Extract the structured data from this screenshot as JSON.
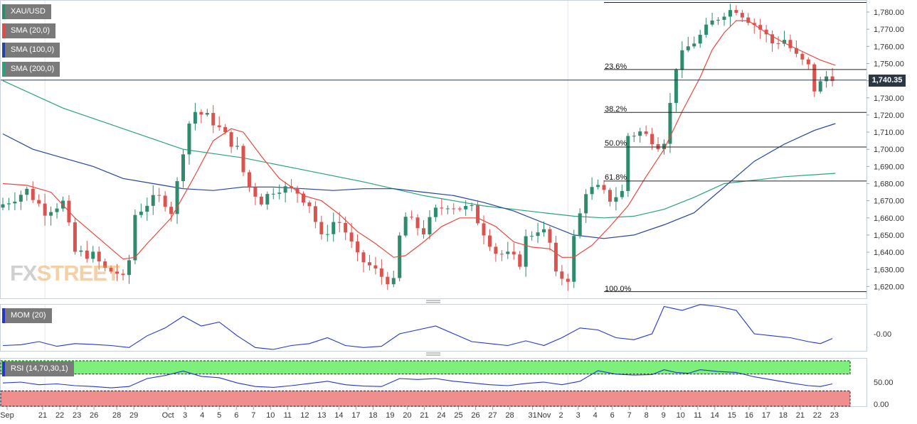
{
  "legend": {
    "symbol": "XAU/USD",
    "sma20": "SMA (20,0)",
    "sma100": "SMA (100,0)",
    "sma200": "SMA (200,0)",
    "mom": "MOM (20)",
    "rsi": "RSI (14,70,30,1)"
  },
  "colors": {
    "up": "#2e8b6e",
    "down": "#d9544f",
    "sma20": "#e84a3f",
    "sma100": "#23459c",
    "sma200": "#2aa27e",
    "indicator": "#2437c8",
    "overbought": "#7cf07a",
    "oversold": "#f08d8d"
  },
  "watermark": {
    "a": "FX",
    "b": "STREET"
  },
  "current_price": "1,740.35",
  "fib_levels": [
    {
      "label": "23.6%",
      "value": 1746.5
    },
    {
      "label": "38.2%",
      "value": 1721.5
    },
    {
      "label": "50.0%",
      "value": 1701.3
    },
    {
      "label": "61.8%",
      "value": 1681.5
    },
    {
      "label": "100.0%",
      "value": 1617.0
    }
  ],
  "fib_top": 1785.6,
  "chart_data": [
    {
      "type": "candlestick",
      "title": "",
      "symbol": "XAU/USD",
      "x_ticks": [
        "Sep",
        "21",
        "22",
        "23",
        "26",
        "28",
        "29",
        "Oct",
        "3",
        "4",
        "5",
        "6",
        "7",
        "10",
        "11",
        "12",
        "13",
        "14",
        "17",
        "18",
        "19",
        "20",
        "21",
        "24",
        "25",
        "26",
        "27",
        "28",
        "31",
        "Nov",
        "2",
        "3",
        "4",
        "6",
        "7",
        "8",
        "9",
        "10",
        "11",
        "14",
        "15",
        "16",
        "17",
        "18",
        "21",
        "22",
        "23"
      ],
      "y_ticks": [
        "1,780.00",
        "1,770.00",
        "1,760.00",
        "1,750.00",
        "1,740.00",
        "1,730.00",
        "1,720.00",
        "1,710.00",
        "1,700.00",
        "1,690.00",
        "1,680.00",
        "1,670.00",
        "1,660.00",
        "1,650.00",
        "1,640.00",
        "1,630.00",
        "1,620.00"
      ],
      "ylim": [
        1612,
        1786
      ],
      "close_path": [
        [
          0,
          1668
        ],
        [
          4,
          1676
        ],
        [
          7,
          1664
        ],
        [
          10,
          1669
        ],
        [
          12,
          1640
        ],
        [
          15,
          1638
        ],
        [
          17,
          1630
        ],
        [
          19,
          1628
        ],
        [
          20.5,
          1622
        ],
        [
          22,
          1662
        ],
        [
          24.5,
          1670
        ],
        [
          26.5,
          1672
        ],
        [
          28,
          1664
        ],
        [
          29.5,
          1688
        ],
        [
          30.5,
          1712
        ],
        [
          32,
          1722
        ],
        [
          34.5,
          1718
        ],
        [
          37,
          1708
        ],
        [
          39,
          1700
        ],
        [
          40.5,
          1680
        ],
        [
          43,
          1670
        ],
        [
          45.5,
          1678
        ],
        [
          47,
          1677
        ],
        [
          49,
          1675
        ],
        [
          51,
          1668
        ],
        [
          53,
          1648
        ],
        [
          55.5,
          1660
        ],
        [
          57,
          1652
        ],
        [
          59,
          1637
        ],
        [
          61,
          1632
        ],
        [
          63,
          1626
        ],
        [
          65,
          1622
        ],
        [
          66.5,
          1662
        ],
        [
          68.5,
          1656
        ],
        [
          70,
          1652
        ],
        [
          72,
          1664
        ],
        [
          74,
          1668
        ],
        [
          76,
          1666
        ],
        [
          78,
          1665
        ],
        [
          80,
          1652
        ],
        [
          82,
          1640
        ],
        [
          84,
          1638
        ],
        [
          86,
          1634
        ],
        [
          87,
          1648
        ],
        [
          89.5,
          1655
        ],
        [
          91,
          1645
        ],
        [
          92,
          1626
        ],
        [
          94,
          1625
        ],
        [
          95,
          1648
        ],
        [
          97,
          1676
        ],
        [
          99,
          1677
        ],
        [
          101,
          1671
        ],
        [
          103,
          1675
        ],
        [
          104,
          1708
        ],
        [
          106,
          1710
        ],
        [
          108,
          1706
        ],
        [
          109,
          1703
        ],
        [
          110.5,
          1707
        ],
        [
          111.5,
          1745
        ],
        [
          113.5,
          1758
        ],
        [
          116,
          1766
        ],
        [
          118,
          1774
        ],
        [
          120,
          1780
        ],
        [
          122,
          1782
        ],
        [
          124,
          1776
        ],
        [
          126,
          1770
        ],
        [
          128,
          1762
        ],
        [
          130,
          1764
        ],
        [
          132,
          1754
        ],
        [
          134,
          1748
        ],
        [
          135,
          1735
        ],
        [
          136.5,
          1740
        ],
        [
          137.5,
          1745
        ],
        [
          138.5,
          1740.35
        ]
      ],
      "sma20": [
        [
          0,
          1680
        ],
        [
          4,
          1679
        ],
        [
          8,
          1675
        ],
        [
          12,
          1660
        ],
        [
          16,
          1648
        ],
        [
          20,
          1636
        ],
        [
          22,
          1637
        ],
        [
          24,
          1645
        ],
        [
          28,
          1660
        ],
        [
          32,
          1685
        ],
        [
          35,
          1705
        ],
        [
          38,
          1712
        ],
        [
          40,
          1710
        ],
        [
          43,
          1696
        ],
        [
          46,
          1683
        ],
        [
          48,
          1678
        ],
        [
          50,
          1673
        ],
        [
          53,
          1670
        ],
        [
          56,
          1662
        ],
        [
          59,
          1652
        ],
        [
          62,
          1645
        ],
        [
          65,
          1637
        ],
        [
          67,
          1638
        ],
        [
          70,
          1646
        ],
        [
          73,
          1655
        ],
        [
          76,
          1660
        ],
        [
          79,
          1660
        ],
        [
          82,
          1655
        ],
        [
          85,
          1646
        ],
        [
          88,
          1643
        ],
        [
          91,
          1642
        ],
        [
          93,
          1637
        ],
        [
          95,
          1637
        ],
        [
          98,
          1644
        ],
        [
          101,
          1655
        ],
        [
          104,
          1667
        ],
        [
          107,
          1684
        ],
        [
          110,
          1700
        ],
        [
          113,
          1722
        ],
        [
          116,
          1742
        ],
        [
          118,
          1758
        ],
        [
          120,
          1768
        ],
        [
          122,
          1775
        ],
        [
          124,
          1775
        ],
        [
          127,
          1768
        ],
        [
          130,
          1762
        ],
        [
          133,
          1757
        ],
        [
          136,
          1752
        ],
        [
          138.5,
          1749
        ]
      ],
      "sma100": [
        [
          0,
          1709
        ],
        [
          5,
          1700
        ],
        [
          10,
          1695
        ],
        [
          15,
          1690
        ],
        [
          20,
          1683
        ],
        [
          25,
          1680
        ],
        [
          30,
          1677
        ],
        [
          35,
          1676
        ],
        [
          40,
          1678
        ],
        [
          45,
          1678
        ],
        [
          50,
          1677
        ],
        [
          55,
          1676
        ],
        [
          60,
          1677
        ],
        [
          65,
          1677
        ],
        [
          70,
          1675
        ],
        [
          75,
          1673
        ],
        [
          80,
          1669
        ],
        [
          85,
          1664
        ],
        [
          90,
          1657
        ],
        [
          95,
          1650
        ],
        [
          100,
          1648
        ],
        [
          105,
          1650
        ],
        [
          110,
          1656
        ],
        [
          115,
          1663
        ],
        [
          120,
          1678
        ],
        [
          125,
          1693
        ],
        [
          130,
          1703
        ],
        [
          135,
          1711
        ],
        [
          138.5,
          1715
        ]
      ],
      "sma200": [
        [
          0,
          1740
        ],
        [
          10,
          1724
        ],
        [
          20,
          1712
        ],
        [
          30,
          1700
        ],
        [
          40,
          1695
        ],
        [
          50,
          1688
        ],
        [
          60,
          1681
        ],
        [
          70,
          1673
        ],
        [
          80,
          1667
        ],
        [
          90,
          1663
        ],
        [
          95,
          1661
        ],
        [
          100,
          1660
        ],
        [
          105,
          1661
        ],
        [
          110,
          1665
        ],
        [
          115,
          1672
        ],
        [
          120,
          1680
        ],
        [
          125,
          1682
        ],
        [
          130,
          1684
        ],
        [
          138.5,
          1686
        ]
      ]
    },
    {
      "type": "line",
      "name": "MOM (20)",
      "y_ticks": [
        "-0.00"
      ],
      "ylim": [
        -60,
        80
      ],
      "x": [
        0,
        3,
        6,
        9,
        12,
        15,
        18,
        21,
        24,
        27,
        30,
        33,
        36,
        39,
        42,
        45,
        48,
        51,
        54,
        57,
        60,
        63,
        66,
        69,
        72,
        75,
        78,
        81,
        84,
        87,
        90,
        93,
        96,
        99,
        102,
        105,
        108,
        110,
        111.5,
        113,
        116,
        119,
        122,
        125,
        128,
        131,
        134,
        136,
        138
      ],
      "values": [
        -30,
        -28,
        -20,
        -32,
        -25,
        -27,
        -30,
        -35,
        -5,
        15,
        45,
        20,
        30,
        -5,
        -35,
        -40,
        -30,
        -25,
        -10,
        -30,
        -35,
        -32,
        0,
        10,
        20,
        0,
        -20,
        -25,
        -30,
        -18,
        -30,
        -10,
        15,
        10,
        -10,
        -15,
        0,
        70,
        65,
        60,
        75,
        70,
        60,
        0,
        -5,
        -10,
        -20,
        -25,
        -12
      ]
    },
    {
      "type": "line",
      "name": "RSI (14,70,30,1)",
      "y_ticks": [
        "50.00",
        "0.00"
      ],
      "ylim": [
        0,
        100
      ],
      "bands": [
        70,
        30
      ],
      "x": [
        0,
        3,
        6,
        9,
        12,
        15,
        18,
        21,
        24,
        27,
        30,
        33,
        36,
        39,
        42,
        45,
        48,
        51,
        54,
        57,
        60,
        63,
        66,
        69,
        72,
        75,
        78,
        81,
        84,
        87,
        90,
        93,
        96,
        99,
        102,
        105,
        108,
        110,
        112,
        114,
        116,
        119,
        122,
        125,
        128,
        131,
        134,
        136,
        138
      ],
      "values": [
        48,
        50,
        44,
        46,
        42,
        40,
        37,
        40,
        58,
        65,
        75,
        63,
        60,
        48,
        40,
        38,
        42,
        47,
        52,
        44,
        41,
        40,
        58,
        56,
        58,
        52,
        48,
        44,
        42,
        47,
        50,
        44,
        52,
        76,
        68,
        66,
        67,
        78,
        72,
        70,
        78,
        74,
        72,
        62,
        55,
        48,
        42,
        40,
        46
      ]
    }
  ]
}
